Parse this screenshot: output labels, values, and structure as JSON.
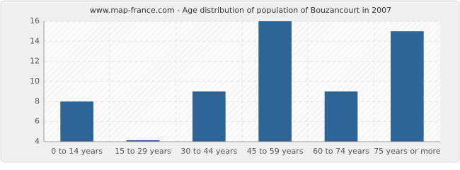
{
  "chart_data": {
    "type": "bar",
    "title": "www.map-france.com - Age distribution of population of Bouzancourt in 2007",
    "categories": [
      "0 to 14 years",
      "15 to 29 years",
      "30 to 44 years",
      "45 to 59 years",
      "60 to 74 years",
      "75 years or more"
    ],
    "values": [
      8,
      4,
      9,
      16,
      9,
      15
    ],
    "color": "#2e6496",
    "ylim": [
      4,
      16
    ],
    "yticks": [
      4,
      6,
      8,
      10,
      12,
      14,
      16
    ],
    "grid": true
  }
}
